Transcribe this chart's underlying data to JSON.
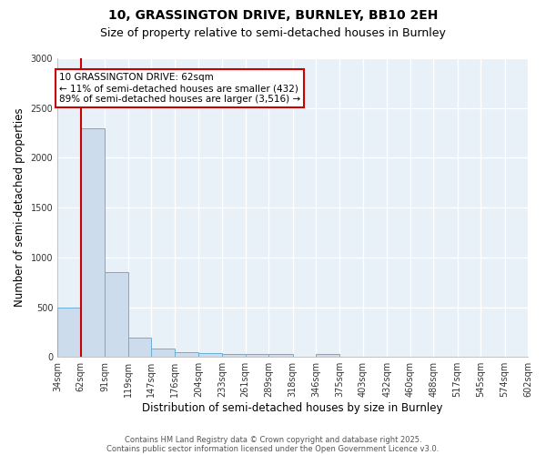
{
  "title1": "10, GRASSINGTON DRIVE, BURNLEY, BB10 2EH",
  "title2": "Size of property relative to semi-detached houses in Burnley",
  "xlabel": "Distribution of semi-detached houses by size in Burnley",
  "ylabel": "Number of semi-detached properties",
  "bin_edges": [
    34,
    62,
    91,
    119,
    147,
    176,
    204,
    233,
    261,
    289,
    318,
    346,
    375,
    403,
    432,
    460,
    488,
    517,
    545,
    574,
    602
  ],
  "bar_heights": [
    500,
    2300,
    850,
    190,
    80,
    50,
    35,
    30,
    25,
    25,
    0,
    30,
    0,
    0,
    0,
    0,
    0,
    0,
    0,
    0
  ],
  "bar_color": "#cddcec",
  "bar_edge_color": "#6aaed6",
  "property_line_x": 62,
  "property_line_color": "#cc0000",
  "annotation_text": "10 GRASSINGTON DRIVE: 62sqm\n← 11% of semi-detached houses are smaller (432)\n89% of semi-detached houses are larger (3,516) →",
  "annotation_box_color": "#ffffff",
  "annotation_box_edge_color": "#cc0000",
  "ylim": [
    0,
    3000
  ],
  "yticks": [
    0,
    500,
    1000,
    1500,
    2000,
    2500,
    3000
  ],
  "background_color": "#e8f0f8",
  "grid_color": "#ffffff",
  "footnote1": "Contains HM Land Registry data © Crown copyright and database right 2025.",
  "footnote2": "Contains public sector information licensed under the Open Government Licence v3.0.",
  "title1_fontsize": 10,
  "title2_fontsize": 9,
  "tick_fontsize": 7,
  "label_fontsize": 8.5,
  "annotation_fontsize": 7.5
}
